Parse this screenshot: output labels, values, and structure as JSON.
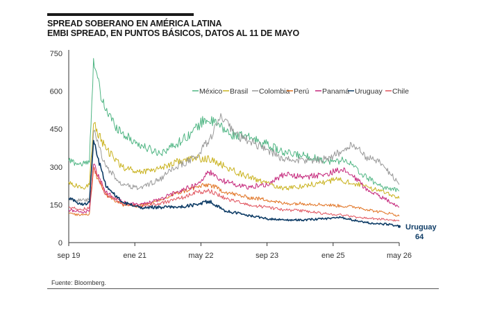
{
  "header": {
    "title": "SPREAD SOBERANO EN AMÉRICA LATINA",
    "subtitle": "EMBI SPREAD, EN PUNTOS BÁSICOS, DATOS AL 11 DE MAYO"
  },
  "footer": {
    "source": "Fuente: Bloomberg."
  },
  "chart_data": {
    "type": "line",
    "title": "SPREAD SOBERANO EN AMÉRICA LATINA",
    "subtitle": "EMBI SPREAD, EN PUNTOS BÁSICOS, DATOS AL 11 DE MAYO",
    "xlabel": "",
    "ylabel": "",
    "x_range": [
      "2019-09",
      "2026-05"
    ],
    "x_ticks": [
      "sep 19",
      "ene 21",
      "may 22",
      "sep 23",
      "ene 25",
      "may 26"
    ],
    "ylim": [
      0,
      750
    ],
    "y_ticks": [
      0,
      150,
      300,
      450,
      600,
      750
    ],
    "grid": false,
    "legend_position": "top-right",
    "end_annotation": {
      "series": "Uruguay",
      "label": "Uruguay",
      "value": "64"
    },
    "series": [
      {
        "name": "México",
        "color": "#4fb583",
        "points": [
          [
            "2019-09",
            325
          ],
          [
            "2019-12",
            310
          ],
          [
            "2020-02",
            318
          ],
          [
            "2020-03",
            730
          ],
          [
            "2020-05",
            560
          ],
          [
            "2020-08",
            470
          ],
          [
            "2020-11",
            420
          ],
          [
            "2021-03",
            380
          ],
          [
            "2021-07",
            355
          ],
          [
            "2021-11",
            390
          ],
          [
            "2022-03",
            440
          ],
          [
            "2022-06",
            490
          ],
          [
            "2022-09",
            470
          ],
          [
            "2022-12",
            430
          ],
          [
            "2023-05",
            415
          ],
          [
            "2023-09",
            390
          ],
          [
            "2024-01",
            355
          ],
          [
            "2024-06",
            345
          ],
          [
            "2024-10",
            330
          ],
          [
            "2025-01",
            320
          ],
          [
            "2025-04",
            330
          ],
          [
            "2025-08",
            270
          ],
          [
            "2026-01",
            220
          ],
          [
            "2026-05",
            205
          ]
        ]
      },
      {
        "name": "Brasil",
        "color": "#c9b21e",
        "points": [
          [
            "2019-09",
            240
          ],
          [
            "2019-12",
            215
          ],
          [
            "2020-02",
            230
          ],
          [
            "2020-03",
            470
          ],
          [
            "2020-06",
            370
          ],
          [
            "2020-10",
            300
          ],
          [
            "2021-02",
            280
          ],
          [
            "2021-07",
            295
          ],
          [
            "2021-11",
            320
          ],
          [
            "2022-04",
            335
          ],
          [
            "2022-07",
            330
          ],
          [
            "2022-11",
            300
          ],
          [
            "2023-03",
            270
          ],
          [
            "2023-08",
            240
          ],
          [
            "2024-01",
            215
          ],
          [
            "2024-06",
            225
          ],
          [
            "2024-11",
            240
          ],
          [
            "2025-02",
            250
          ],
          [
            "2025-06",
            235
          ],
          [
            "2025-10",
            215
          ],
          [
            "2026-02",
            200
          ],
          [
            "2026-05",
            175
          ]
        ]
      },
      {
        "name": "Colombia",
        "color": "#999999",
        "points": [
          [
            "2019-09",
            175
          ],
          [
            "2019-12",
            165
          ],
          [
            "2020-02",
            170
          ],
          [
            "2020-03",
            440
          ],
          [
            "2020-06",
            300
          ],
          [
            "2020-10",
            230
          ],
          [
            "2021-02",
            215
          ],
          [
            "2021-07",
            250
          ],
          [
            "2021-11",
            300
          ],
          [
            "2022-04",
            340
          ],
          [
            "2022-07",
            410
          ],
          [
            "2022-10",
            500
          ],
          [
            "2023-01",
            430
          ],
          [
            "2023-05",
            400
          ],
          [
            "2023-09",
            370
          ],
          [
            "2024-01",
            330
          ],
          [
            "2024-06",
            325
          ],
          [
            "2024-11",
            330
          ],
          [
            "2025-03",
            360
          ],
          [
            "2025-06",
            390
          ],
          [
            "2025-09",
            340
          ],
          [
            "2026-01",
            310
          ],
          [
            "2026-05",
            230
          ]
        ]
      },
      {
        "name": "Perú",
        "color": "#e0701e",
        "points": [
          [
            "2019-09",
            115
          ],
          [
            "2019-12",
            110
          ],
          [
            "2020-02",
            115
          ],
          [
            "2020-03",
            290
          ],
          [
            "2020-06",
            190
          ],
          [
            "2020-10",
            150
          ],
          [
            "2021-02",
            145
          ],
          [
            "2021-07",
            165
          ],
          [
            "2021-11",
            195
          ],
          [
            "2022-04",
            220
          ],
          [
            "2022-07",
            230
          ],
          [
            "2022-11",
            200
          ],
          [
            "2023-04",
            180
          ],
          [
            "2023-09",
            170
          ],
          [
            "2024-01",
            155
          ],
          [
            "2024-06",
            155
          ],
          [
            "2024-11",
            150
          ],
          [
            "2025-03",
            145
          ],
          [
            "2025-07",
            140
          ],
          [
            "2025-11",
            125
          ],
          [
            "2026-03",
            115
          ],
          [
            "2026-05",
            105
          ]
        ]
      },
      {
        "name": "Panamá",
        "color": "#c4257a",
        "points": [
          [
            "2019-09",
            130
          ],
          [
            "2019-12",
            120
          ],
          [
            "2020-02",
            125
          ],
          [
            "2020-03",
            310
          ],
          [
            "2020-06",
            200
          ],
          [
            "2020-10",
            160
          ],
          [
            "2021-02",
            150
          ],
          [
            "2021-07",
            170
          ],
          [
            "2021-11",
            200
          ],
          [
            "2022-04",
            230
          ],
          [
            "2022-07",
            280
          ],
          [
            "2022-11",
            240
          ],
          [
            "2023-04",
            220
          ],
          [
            "2023-09",
            230
          ],
          [
            "2024-01",
            270
          ],
          [
            "2024-06",
            260
          ],
          [
            "2024-11",
            270
          ],
          [
            "2025-03",
            290
          ],
          [
            "2025-06",
            260
          ],
          [
            "2025-10",
            200
          ],
          [
            "2026-02",
            170
          ],
          [
            "2026-05",
            140
          ]
        ]
      },
      {
        "name": "Uruguay",
        "color": "#0e3c66",
        "points": [
          [
            "2019-09",
            175
          ],
          [
            "2019-12",
            150
          ],
          [
            "2020-02",
            160
          ],
          [
            "2020-03",
            405
          ],
          [
            "2020-06",
            220
          ],
          [
            "2020-10",
            160
          ],
          [
            "2021-02",
            140
          ],
          [
            "2021-07",
            140
          ],
          [
            "2021-11",
            140
          ],
          [
            "2022-04",
            150
          ],
          [
            "2022-07",
            165
          ],
          [
            "2022-11",
            125
          ],
          [
            "2023-04",
            110
          ],
          [
            "2023-09",
            95
          ],
          [
            "2024-01",
            90
          ],
          [
            "2024-06",
            90
          ],
          [
            "2024-11",
            95
          ],
          [
            "2025-03",
            100
          ],
          [
            "2025-07",
            85
          ],
          [
            "2025-11",
            75
          ],
          [
            "2026-03",
            72
          ],
          [
            "2026-05",
            64
          ]
        ]
      },
      {
        "name": "Chile",
        "color": "#e0525c",
        "points": [
          [
            "2019-09",
            140
          ],
          [
            "2019-12",
            130
          ],
          [
            "2020-02",
            140
          ],
          [
            "2020-03",
            300
          ],
          [
            "2020-06",
            190
          ],
          [
            "2020-10",
            155
          ],
          [
            "2021-02",
            145
          ],
          [
            "2021-07",
            155
          ],
          [
            "2021-11",
            170
          ],
          [
            "2022-04",
            200
          ],
          [
            "2022-07",
            205
          ],
          [
            "2022-11",
            175
          ],
          [
            "2023-04",
            150
          ],
          [
            "2023-09",
            140
          ],
          [
            "2024-01",
            130
          ],
          [
            "2024-06",
            125
          ],
          [
            "2024-11",
            115
          ],
          [
            "2025-03",
            110
          ],
          [
            "2025-07",
            100
          ],
          [
            "2025-11",
            95
          ],
          [
            "2026-03",
            90
          ],
          [
            "2026-05",
            85
          ]
        ]
      }
    ]
  }
}
